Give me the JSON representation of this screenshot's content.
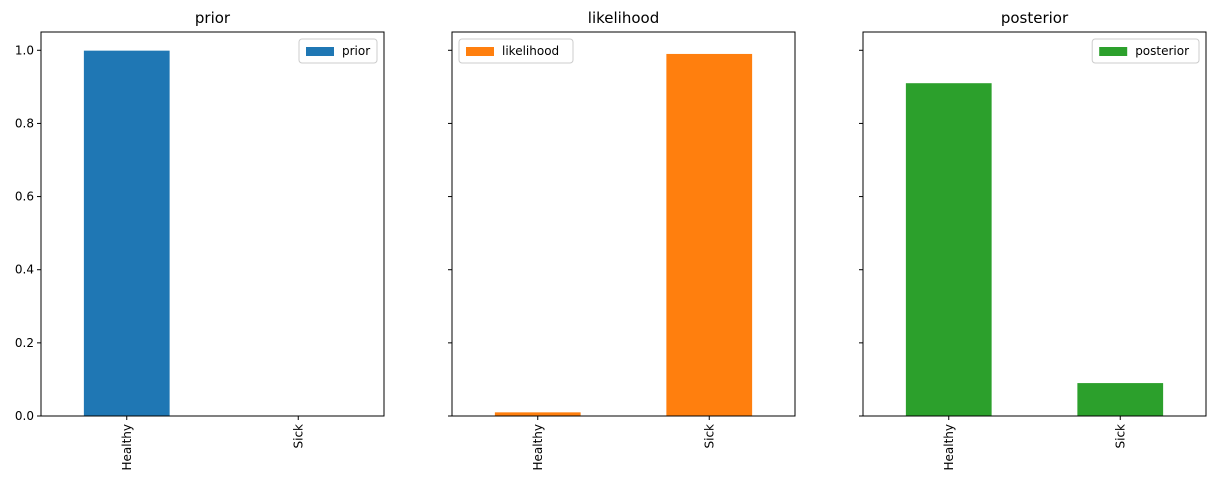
{
  "chart_data": [
    {
      "type": "bar",
      "title": "prior",
      "categories": [
        "Healthy",
        "Sick"
      ],
      "series": [
        {
          "name": "prior",
          "values": [
            0.999,
            0.001
          ]
        }
      ],
      "ylim": [
        0,
        1.05
      ],
      "yticks": [
        "0.0",
        "0.2",
        "0.4",
        "0.6",
        "0.8",
        "1.0"
      ],
      "legend": "top-right",
      "color": "#1f77b4"
    },
    {
      "type": "bar",
      "title": "likelihood",
      "categories": [
        "Healthy",
        "Sick"
      ],
      "series": [
        {
          "name": "likelihood",
          "values": [
            0.01,
            0.99
          ]
        }
      ],
      "ylim": [
        0,
        1.05
      ],
      "yticks": [
        "0.0",
        "0.2",
        "0.4",
        "0.6",
        "0.8",
        "1.0"
      ],
      "legend": "top-left",
      "color": "#ff7f0e"
    },
    {
      "type": "bar",
      "title": "posterior",
      "categories": [
        "Healthy",
        "Sick"
      ],
      "series": [
        {
          "name": "posterior",
          "values": [
            0.91,
            0.09
          ]
        }
      ],
      "ylim": [
        0,
        1.05
      ],
      "yticks": [
        "0.0",
        "0.2",
        "0.4",
        "0.6",
        "0.8",
        "1.0"
      ],
      "legend": "top-right",
      "color": "#2ca02c"
    }
  ]
}
